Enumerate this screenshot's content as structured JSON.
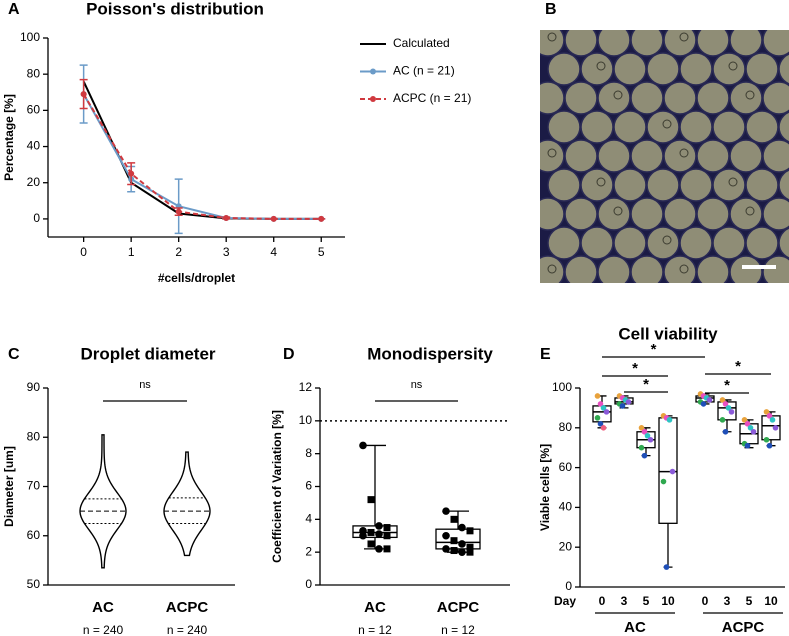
{
  "image_panel": {
    "label": "B"
  },
  "chart_data": [
    {
      "type": "line",
      "label": "A",
      "title": "Poisson's distribution",
      "x_label": "#cells/droplet",
      "y_label": "Percentage [%]",
      "x": [
        0,
        1,
        2,
        3,
        4,
        5
      ],
      "xlim": [
        -0.75,
        5.5
      ],
      "xticks": [
        0,
        1,
        2,
        3,
        4,
        5
      ],
      "ylim": [
        -10,
        100
      ],
      "yticks": [
        0,
        20,
        40,
        60,
        80,
        100
      ],
      "series": [
        {
          "name": "Calculated",
          "color": "#000000",
          "values": [
            76,
            20,
            3,
            0.3,
            0,
            0
          ]
        },
        {
          "name": "AC (n = 21)",
          "color": "#6b9bc8",
          "values": [
            69,
            22,
            7,
            0.5,
            0,
            0
          ],
          "errors": [
            16,
            7,
            15,
            0.5,
            0,
            0
          ]
        },
        {
          "name": "ACPC (n = 21)",
          "color": "#d0393f",
          "dashed": true,
          "values": [
            69,
            25,
            4,
            0.5,
            0,
            0
          ],
          "errors": [
            8,
            6,
            2,
            0.5,
            0,
            0
          ]
        }
      ]
    },
    {
      "type": "violin",
      "label": "C",
      "title": "Droplet diameter",
      "y_label": "Diameter [um]",
      "categories": [
        "AC",
        "ACPC"
      ],
      "n_labels": [
        "n = 240",
        "n = 240"
      ],
      "ylim": [
        50,
        90
      ],
      "yticks": [
        50,
        60,
        70,
        80,
        90
      ],
      "significance": "ns",
      "violins": [
        {
          "min": 53.5,
          "q1": 62.5,
          "median": 65,
          "q3": 67.5,
          "max": 80.5
        },
        {
          "min": 56,
          "q1": 62.5,
          "median": 65,
          "q3": 67.7,
          "max": 77
        }
      ]
    },
    {
      "type": "box",
      "label": "D",
      "title": "Monodispersity",
      "y_label": "Coefficient of Variation [%]",
      "categories": [
        "AC",
        "ACPC"
      ],
      "n_labels": [
        "n = 12",
        "n = 12"
      ],
      "ylim": [
        0,
        12
      ],
      "yticks": [
        0,
        2,
        4,
        6,
        8,
        10,
        12
      ],
      "reference_line": 10,
      "significance": "ns",
      "point_color": "#000000",
      "boxes": [
        {
          "min": 2.2,
          "q1": 2.9,
          "median": 3.2,
          "q3": 3.6,
          "max": 8.5
        },
        {
          "min": 2.0,
          "q1": 2.2,
          "median": 2.6,
          "q3": 3.4,
          "max": 4.5
        }
      ],
      "points": [
        [
          8.5,
          5.2,
          3.6,
          3.5,
          3.3,
          3.2,
          3.1,
          3.0,
          3.0,
          2.5,
          2.2,
          2.2
        ],
        [
          4.5,
          4.0,
          3.5,
          3.3,
          3.0,
          2.7,
          2.5,
          2.3,
          2.2,
          2.1,
          2.0,
          2.0
        ]
      ]
    },
    {
      "type": "box",
      "label": "E",
      "title": "Cell viability",
      "y_label": "Viable cells [%]",
      "x_label": "Day",
      "categories": [
        "0",
        "3",
        "5",
        "10",
        "0",
        "3",
        "5",
        "10"
      ],
      "groups": [
        "AC",
        "ACPC"
      ],
      "ylim": [
        0,
        100
      ],
      "yticks": [
        0,
        20,
        40,
        60,
        80,
        100
      ],
      "significance": [
        "*",
        "*",
        "*",
        "*",
        "*"
      ],
      "point_colors": [
        "#e8a23c",
        "#e84fc1",
        "#2ec4c4",
        "#8a5ad8",
        "#2fa84f",
        "#1f4fb8",
        "#f06080"
      ],
      "boxes": [
        {
          "min": 80,
          "q1": 83,
          "median": 88,
          "q3": 91,
          "max": 96
        },
        {
          "min": 90,
          "q1": 92,
          "median": 93,
          "q3": 95,
          "max": 96
        },
        {
          "min": 66,
          "q1": 70,
          "median": 74,
          "q3": 78,
          "max": 80
        },
        {
          "min": 10,
          "q1": 32,
          "median": 58,
          "q3": 85,
          "max": 86
        },
        {
          "min": 92,
          "q1": 93,
          "median": 95,
          "q3": 96,
          "max": 97
        },
        {
          "min": 78,
          "q1": 84,
          "median": 90,
          "q3": 93,
          "max": 94
        },
        {
          "min": 70,
          "q1": 72,
          "median": 77,
          "q3": 82,
          "max": 84
        },
        {
          "min": 71,
          "q1": 74,
          "median": 81,
          "q3": 86,
          "max": 88
        }
      ],
      "points": [
        [
          96,
          92,
          90,
          88,
          85,
          82,
          80
        ],
        [
          96,
          95,
          94,
          93,
          92,
          91
        ],
        [
          80,
          78,
          76,
          74,
          70,
          66
        ],
        [
          86,
          85,
          84,
          58,
          53,
          10
        ],
        [
          97,
          96,
          95,
          94,
          93,
          92
        ],
        [
          94,
          92,
          90,
          88,
          84,
          78
        ],
        [
          84,
          82,
          80,
          78,
          72,
          71
        ],
        [
          88,
          86,
          84,
          80,
          74,
          71
        ]
      ]
    }
  ]
}
